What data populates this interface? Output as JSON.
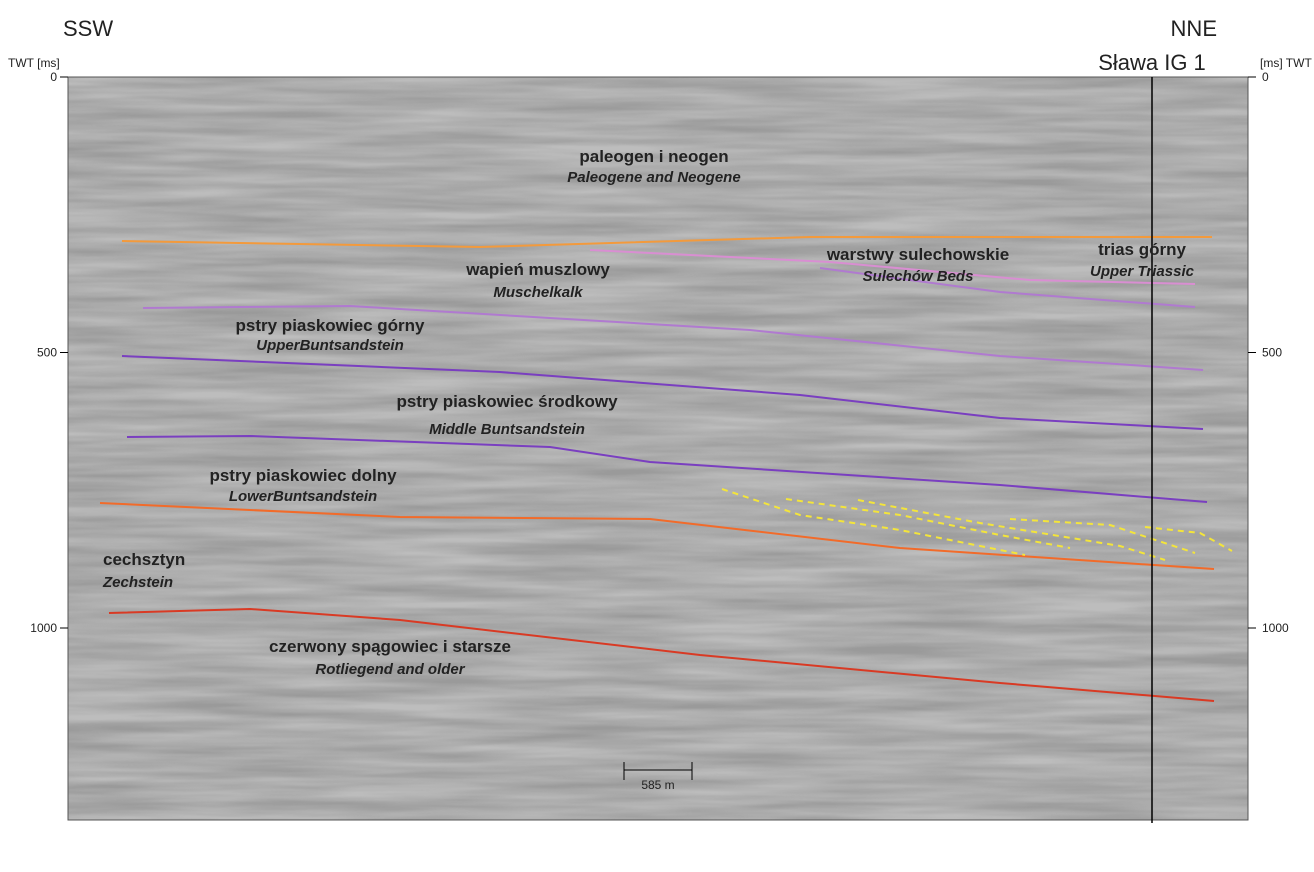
{
  "header": {
    "left_direction": "SSW",
    "right_direction": "NNE",
    "well": "Sława IG 1"
  },
  "axes": {
    "left_label": "TWT [ms]",
    "right_label": "[ms] TWT",
    "ticks": [
      0,
      500,
      1000
    ]
  },
  "units": [
    {
      "name": "paleogen i neogen",
      "name_en": "Paleogene and Neogene"
    },
    {
      "name": "warstwy sulechowskie",
      "name_en": "Sulechów Beds"
    },
    {
      "name": "trias górny",
      "name_en": "Upper Triassic"
    },
    {
      "name": "wapień muszlowy",
      "name_en": "Muschelkalk"
    },
    {
      "name": "pstry piaskowiec górny",
      "name_en": "UpperBuntsandstein"
    },
    {
      "name": "pstry piaskowiec środkowy",
      "name_en": "Middle Buntsandstein"
    },
    {
      "name": "pstry piaskowiec dolny",
      "name_en": "LowerBuntsandstein"
    },
    {
      "name": "cechsztyn",
      "name_en": "Zechstein"
    },
    {
      "name": "czerwony spągowiec i starsze",
      "name_en": "Rotliegend and older"
    }
  ],
  "scale_bar": "585 m"
}
